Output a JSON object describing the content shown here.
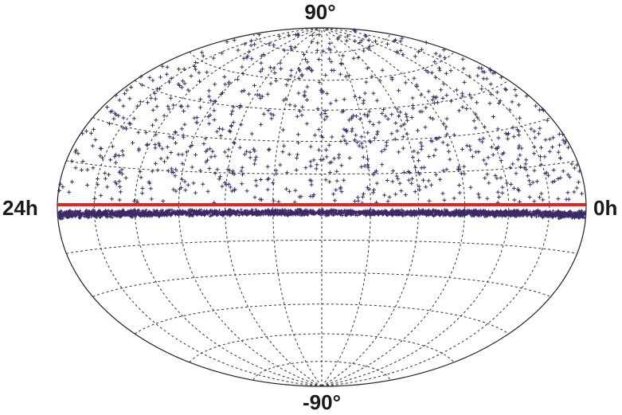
{
  "projection": "aitoff-hammer",
  "labels": {
    "north_pole": "90°",
    "south_pole": "-90°",
    "left_edge": "24h",
    "right_edge": "0h"
  },
  "grid": {
    "ra_step_hours": 2,
    "dec_step_deg": 15
  },
  "colors": {
    "background": "#ffffff",
    "outline": "#222222",
    "grid": "#333333",
    "sources": "#3a2a6a",
    "reference_line": "#e8231f"
  },
  "chart_data": {
    "type": "scatter",
    "marker": "plus",
    "reference_line": {
      "dec_deg": 0
    },
    "sources": {
      "sparse_upper_hemisphere_count": 900,
      "dense_band": {
        "dec_min_deg": -4,
        "dec_max_deg": -1,
        "count": 2600
      }
    }
  }
}
